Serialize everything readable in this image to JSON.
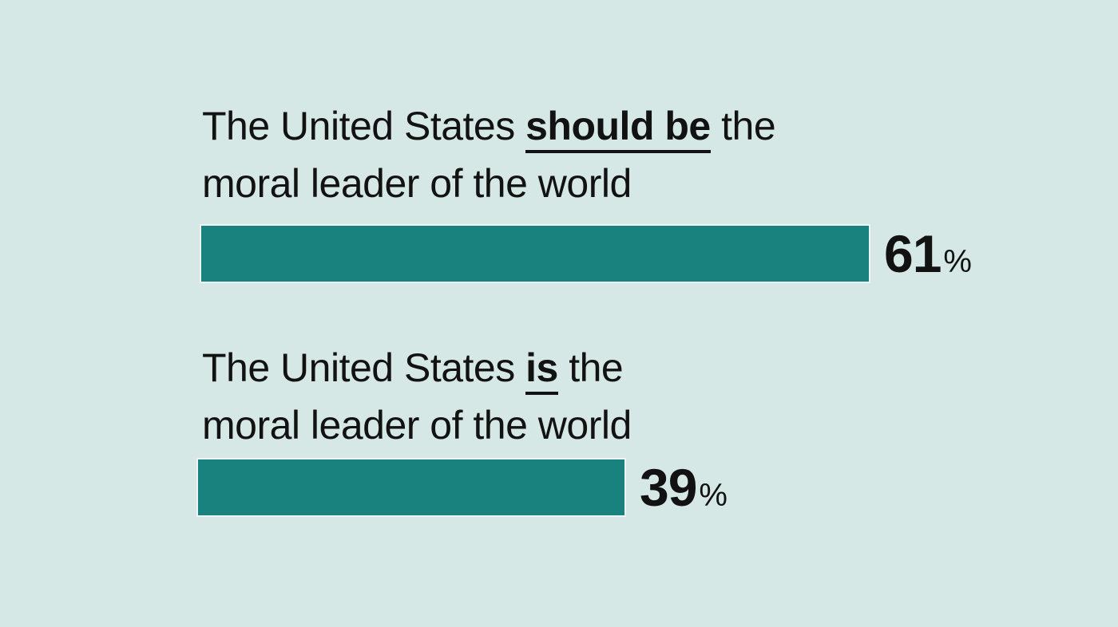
{
  "colors": {
    "background": "#d5e8e5",
    "bar": "#19817e",
    "text": "#121212"
  },
  "chart_data": {
    "type": "bar",
    "orientation": "horizontal",
    "unit": "%",
    "xlim": [
      0,
      100
    ],
    "grid": false,
    "legend": false,
    "categories": [
      "The United States should be the moral leader of the world",
      "The United States is the moral leader of the world"
    ],
    "values": [
      61,
      39
    ],
    "rows": [
      {
        "line1_pre": "The United States ",
        "line1_emphasis": "should be",
        "line1_post": " the",
        "line2": "moral leader of the world",
        "value_label": "61",
        "value_suffix": "%"
      },
      {
        "line1_pre": "The United States ",
        "line1_emphasis": "is",
        "line1_post": " the",
        "line2": "moral leader of the world",
        "value_label": "39",
        "value_suffix": "%"
      }
    ]
  }
}
